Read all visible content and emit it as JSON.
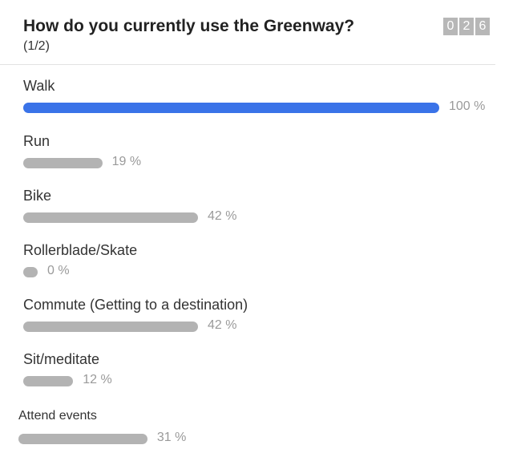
{
  "question": {
    "title": "How do you currently use the Greenway?",
    "subtitle": "(1/2)"
  },
  "counter": {
    "digits": [
      "0",
      "2",
      "6"
    ]
  },
  "colors": {
    "top_bar": "#3a73e8",
    "bar": "#b3b3b3"
  },
  "chart_data": {
    "type": "bar",
    "orientation": "horizontal",
    "categories": [
      "Walk",
      "Run",
      "Bike",
      "Rollerblade/Skate",
      "Commute (Getting to a destination)",
      "Sit/meditate",
      "Attend events"
    ],
    "values": [
      100,
      19,
      42,
      0,
      42,
      12,
      31
    ],
    "value_labels": [
      "100 %",
      "19 %",
      "42 %",
      "0 %",
      "42 %",
      "12 %",
      "31 %"
    ],
    "unit": "%",
    "xlim": [
      0,
      100
    ]
  }
}
